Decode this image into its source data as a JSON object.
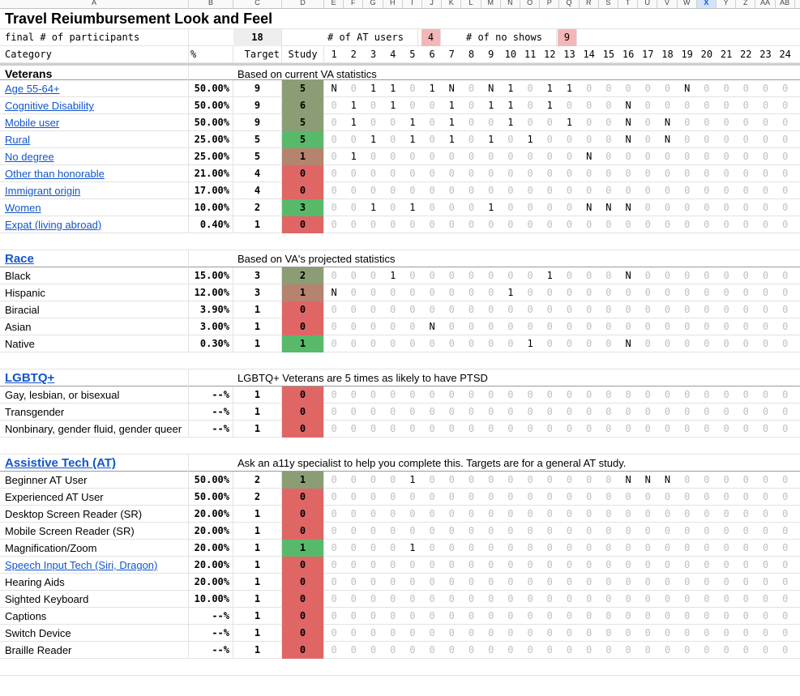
{
  "col_letters": [
    "A",
    "B",
    "C",
    "D",
    "E",
    "F",
    "G",
    "H",
    "I",
    "J",
    "K",
    "L",
    "M",
    "N",
    "O",
    "P",
    "Q",
    "R",
    "S",
    "T",
    "U",
    "V",
    "W",
    "X",
    "Y",
    "Z",
    "AA",
    "AB"
  ],
  "title": "Travel Reiumbursement Look and Feel",
  "participants_label": "final # of participants",
  "participants_value": "18",
  "at_users_label": "# of AT users",
  "at_users_value": "4",
  "no_shows_label": "# of no shows",
  "no_shows_value": "9",
  "header": {
    "category": "Category",
    "pct": "%",
    "target": "Target",
    "study": "Study",
    "numbers": [
      "1",
      "2",
      "3",
      "4",
      "5",
      "6",
      "7",
      "8",
      "9",
      "10",
      "11",
      "12",
      "13",
      "14",
      "15",
      "16",
      "17",
      "18",
      "19",
      "20",
      "21",
      "22",
      "23",
      "24"
    ]
  },
  "colors": {
    "dark_green": "#8b9d75",
    "green": "#58b96a",
    "tan": "#b5836f",
    "red": "#e06666",
    "highlight": "#f4b6b6"
  },
  "sections": [
    {
      "title": "Veterans",
      "title_link": false,
      "note": "Based on current VA statistics",
      "rows": [
        {
          "label": "Age 55-64+",
          "link": true,
          "pct": "50.00%",
          "target": "9",
          "study": "5",
          "color": "dark_green",
          "cells": "N01101N0N101100000N00000"
        },
        {
          "label": "Cognitive Disability",
          "link": true,
          "pct": "50.00%",
          "target": "9",
          "study": "6",
          "color": "dark_green",
          "cells": "010100101101000N00000000"
        },
        {
          "label": "Mobile user",
          "link": true,
          "pct": "50.00%",
          "target": "9",
          "study": "5",
          "color": "dark_green",
          "cells": "010010100100100N0N000000"
        },
        {
          "label": "Rural",
          "link": true,
          "pct": "25.00%",
          "target": "5",
          "study": "5",
          "color": "green",
          "cells": "001010101010000N0N000000"
        },
        {
          "label": "No degree",
          "link": true,
          "pct": "25.00%",
          "target": "5",
          "study": "1",
          "color": "tan",
          "cells": "0100000000000N0000000000"
        },
        {
          "label": "Other than honorable",
          "link": true,
          "pct": "21.00%",
          "target": "4",
          "study": "0",
          "color": "red",
          "cells": "000000000000000000000000"
        },
        {
          "label": "Immigrant origin",
          "link": true,
          "pct": "17.00%",
          "target": "4",
          "study": "0",
          "color": "red",
          "cells": "000000000000000000000000"
        },
        {
          "label": "Women",
          "link": true,
          "pct": "10.00%",
          "target": "2",
          "study": "3",
          "color": "green",
          "cells": "0010100010000NNN00000000"
        },
        {
          "label": "Expat (living abroad)",
          "link": true,
          "pct": "0.40%",
          "target": "1",
          "study": "0",
          "color": "red",
          "cells": "000000000000000000000000"
        }
      ]
    },
    {
      "title": "Race",
      "title_link": true,
      "note": "Based on VA's projected statistics",
      "rows": [
        {
          "label": "Black",
          "link": false,
          "pct": "15.00%",
          "target": "3",
          "study": "2",
          "color": "dark_green",
          "cells": "000100000001000N00000000"
        },
        {
          "label": "Hispanic",
          "link": false,
          "pct": "12.00%",
          "target": "3",
          "study": "1",
          "color": "tan",
          "cells": "N00000000100000000000000"
        },
        {
          "label": "Biracial",
          "link": false,
          "pct": "3.90%",
          "target": "1",
          "study": "0",
          "color": "red",
          "cells": "000000000000000000000000"
        },
        {
          "label": "Asian",
          "link": false,
          "pct": "3.00%",
          "target": "1",
          "study": "0",
          "color": "red",
          "cells": "00000N000000000000000000"
        },
        {
          "label": "Native",
          "link": false,
          "pct": "0.30%",
          "target": "1",
          "study": "1",
          "color": "green",
          "cells": "000000000010000N00000000"
        }
      ]
    },
    {
      "title": "LGBTQ+",
      "title_link": true,
      "note": "LGBTQ+ Veterans are 5 times as likely to have PTSD",
      "rows": [
        {
          "label": "Gay, lesbian, or bisexual",
          "link": false,
          "pct": "--%",
          "target": "1",
          "study": "0",
          "color": "red",
          "cells": "000000000000000000000000"
        },
        {
          "label": "Transgender",
          "link": false,
          "pct": "--%",
          "target": "1",
          "study": "0",
          "color": "red",
          "cells": "000000000000000000000000"
        },
        {
          "label": "Nonbinary, gender fluid, gender queer",
          "link": false,
          "pct": "--%",
          "target": "1",
          "study": "0",
          "color": "red",
          "cells": "000000000000000000000000"
        }
      ]
    },
    {
      "title": "Assistive Tech (AT)",
      "title_link": true,
      "note": "Ask an a11y specialist to help you complete this. Targets are for a general AT study.",
      "rows": [
        {
          "label": "Beginner AT User",
          "link": false,
          "pct": "50.00%",
          "target": "2",
          "study": "1",
          "color": "dark_green",
          "cells": "000010000000000NNN000000"
        },
        {
          "label": "Experienced AT User",
          "link": false,
          "pct": "50.00%",
          "target": "2",
          "study": "0",
          "color": "red",
          "cells": "000000000000000000000000"
        },
        {
          "label": "Desktop Screen Reader (SR)",
          "link": false,
          "pct": "20.00%",
          "target": "1",
          "study": "0",
          "color": "red",
          "cells": "000000000000000000000000"
        },
        {
          "label": "Mobile Screen Reader (SR)",
          "link": false,
          "pct": "20.00%",
          "target": "1",
          "study": "0",
          "color": "red",
          "cells": "000000000000000000000000"
        },
        {
          "label": "Magnification/Zoom",
          "link": false,
          "pct": "20.00%",
          "target": "1",
          "study": "1",
          "color": "green",
          "cells": "000010000000000000000000"
        },
        {
          "label": "Speech Input Tech (Siri, Dragon)",
          "link": true,
          "pct": "20.00%",
          "target": "1",
          "study": "0",
          "color": "red",
          "cells": "000000000000000000000000"
        },
        {
          "label": "Hearing Aids",
          "link": false,
          "pct": "20.00%",
          "target": "1",
          "study": "0",
          "color": "red",
          "cells": "000000000000000000000000"
        },
        {
          "label": "Sighted Keyboard",
          "link": false,
          "pct": "10.00%",
          "target": "1",
          "study": "0",
          "color": "red",
          "cells": "000000000000000000000000"
        },
        {
          "label": "Captions",
          "link": false,
          "pct": "--%",
          "target": "1",
          "study": "0",
          "color": "red",
          "cells": "000000000000000000000000"
        },
        {
          "label": "Switch Device",
          "link": false,
          "pct": "--%",
          "target": "1",
          "study": "0",
          "color": "red",
          "cells": "000000000000000000000000"
        },
        {
          "label": "Braille Reader",
          "link": false,
          "pct": "--%",
          "target": "1",
          "study": "0",
          "color": "red",
          "cells": "000000000000000000000000"
        }
      ]
    }
  ]
}
